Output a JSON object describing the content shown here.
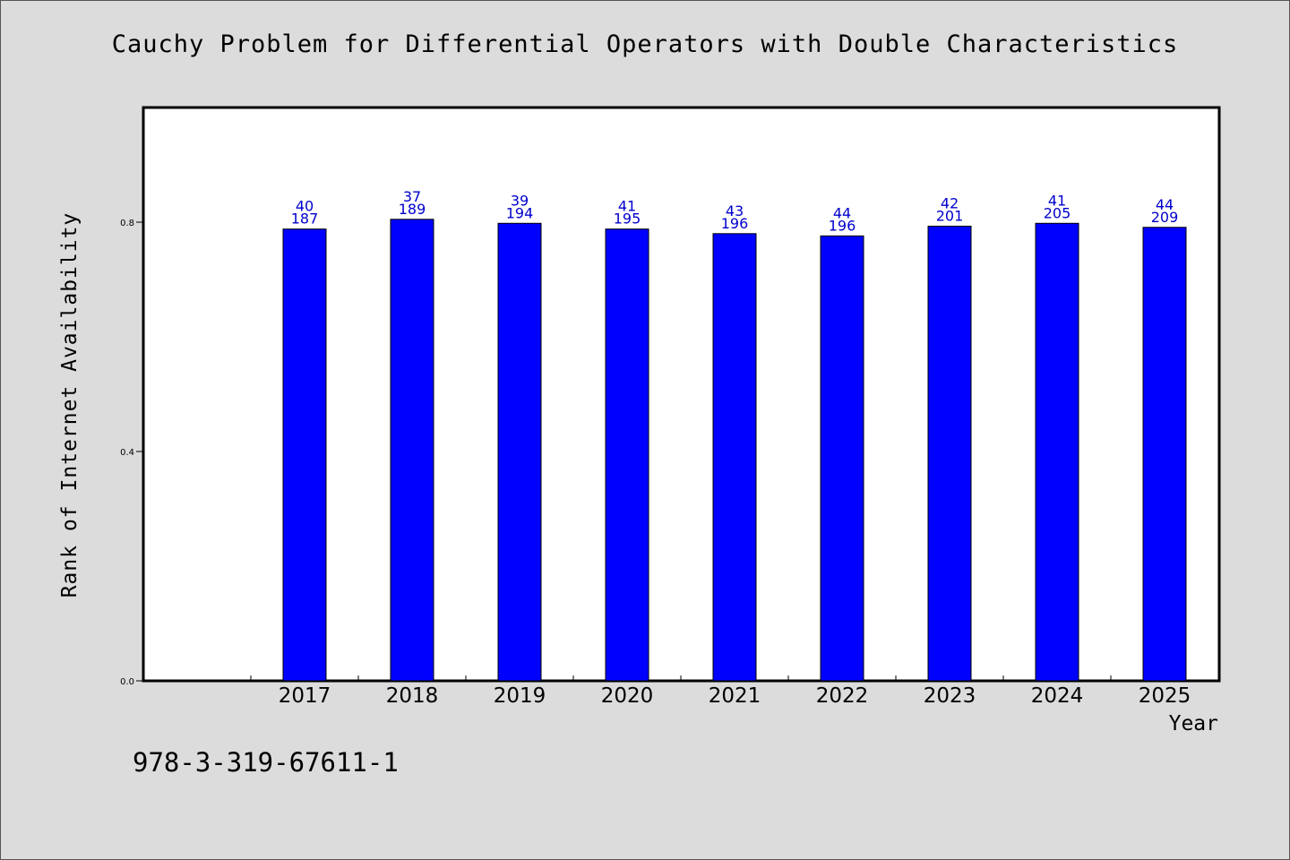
{
  "chart_data": {
    "type": "bar",
    "title": "Cauchy Problem for Differential Operators with Double Characteristics",
    "xlabel": "Year",
    "ylabel": "Rank of Internet Availability",
    "categories": [
      "2017",
      "2018",
      "2019",
      "2020",
      "2021",
      "2022",
      "2023",
      "2024",
      "2025"
    ],
    "series": [
      {
        "values": [
          0.788,
          0.805,
          0.798,
          0.788,
          0.78,
          0.776,
          0.793,
          0.798,
          0.791
        ],
        "labels_top": [
          "40",
          "37",
          "39",
          "41",
          "43",
          "44",
          "42",
          "41",
          "44"
        ],
        "labels_bottom": [
          "187",
          "189",
          "194",
          "195",
          "196",
          "196",
          "201",
          "205",
          "209"
        ]
      }
    ],
    "yticks": [
      "0.0",
      "0.4",
      "0.8"
    ],
    "ylim": [
      0,
      1.0
    ],
    "colors": {
      "bar": "#0000ff",
      "label": "#0000cc",
      "plot_bg": "#ffffff",
      "page_bg": "#dcdcdc"
    },
    "grid": false,
    "legend": "none"
  },
  "footnote": "978-3-319-67611-1"
}
